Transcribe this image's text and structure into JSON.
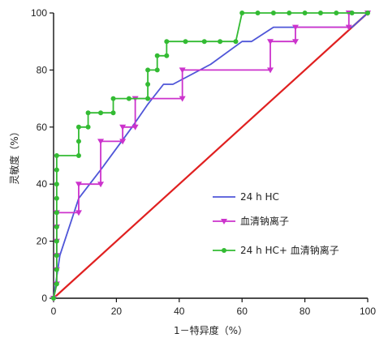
{
  "chart_data": {
    "type": "line",
    "title": "",
    "xlabel": "1－特异度（%）",
    "ylabel": "灵敏度（%）",
    "xlim": [
      0,
      100
    ],
    "ylim": [
      0,
      100
    ],
    "x_ticks": [
      0,
      20,
      40,
      60,
      80,
      100
    ],
    "y_ticks": [
      0,
      20,
      40,
      60,
      80,
      100
    ],
    "grid": false,
    "legend_position": "right-middle",
    "series": [
      {
        "name": "24 h HC",
        "color": "#4f56d8",
        "marker": "none",
        "points": [
          [
            0,
            0
          ],
          [
            2,
            15
          ],
          [
            8,
            35
          ],
          [
            15,
            45
          ],
          [
            25,
            60
          ],
          [
            30,
            68
          ],
          [
            35,
            75
          ],
          [
            38,
            75
          ],
          [
            50,
            82
          ],
          [
            60,
            90
          ],
          [
            63,
            90
          ],
          [
            70,
            95
          ],
          [
            95,
            95
          ],
          [
            100,
            100
          ]
        ]
      },
      {
        "name": "血清钠离子",
        "color": "#cc33cc",
        "marker": "triangle-down",
        "points": [
          [
            0,
            0
          ],
          [
            1,
            5
          ],
          [
            1,
            10
          ],
          [
            1,
            15
          ],
          [
            1,
            20
          ],
          [
            1,
            25
          ],
          [
            1,
            30
          ],
          [
            8,
            30
          ],
          [
            8,
            40
          ],
          [
            15,
            40
          ],
          [
            15,
            55
          ],
          [
            22,
            55
          ],
          [
            22,
            60
          ],
          [
            26,
            60
          ],
          [
            26,
            70
          ],
          [
            41,
            70
          ],
          [
            41,
            80
          ],
          [
            69,
            80
          ],
          [
            69,
            90
          ],
          [
            77,
            90
          ],
          [
            77,
            95
          ],
          [
            94,
            95
          ],
          [
            94,
            100
          ],
          [
            100,
            100
          ]
        ]
      },
      {
        "name": "24 h HC+ 血清钠离子",
        "color": "#33bb33",
        "marker": "circle",
        "points": [
          [
            0,
            0
          ],
          [
            1,
            5
          ],
          [
            1,
            10
          ],
          [
            1,
            15
          ],
          [
            1,
            20
          ],
          [
            1,
            25
          ],
          [
            1,
            30
          ],
          [
            1,
            35
          ],
          [
            1,
            40
          ],
          [
            1,
            45
          ],
          [
            1,
            50
          ],
          [
            8,
            50
          ],
          [
            8,
            55
          ],
          [
            8,
            60
          ],
          [
            11,
            60
          ],
          [
            11,
            65
          ],
          [
            15,
            65
          ],
          [
            19,
            65
          ],
          [
            19,
            70
          ],
          [
            24,
            70
          ],
          [
            30,
            70
          ],
          [
            30,
            75
          ],
          [
            30,
            80
          ],
          [
            33,
            80
          ],
          [
            33,
            85
          ],
          [
            36,
            85
          ],
          [
            36,
            90
          ],
          [
            42,
            90
          ],
          [
            48,
            90
          ],
          [
            53,
            90
          ],
          [
            58,
            90
          ],
          [
            60,
            100
          ],
          [
            65,
            100
          ],
          [
            70,
            100
          ],
          [
            75,
            100
          ],
          [
            80,
            100
          ],
          [
            85,
            100
          ],
          [
            90,
            100
          ],
          [
            95,
            100
          ],
          [
            100,
            100
          ]
        ]
      },
      {
        "name": "",
        "color": "#e02020",
        "marker": "none",
        "points": [
          [
            0,
            0
          ],
          [
            100,
            100
          ]
        ]
      }
    ]
  }
}
